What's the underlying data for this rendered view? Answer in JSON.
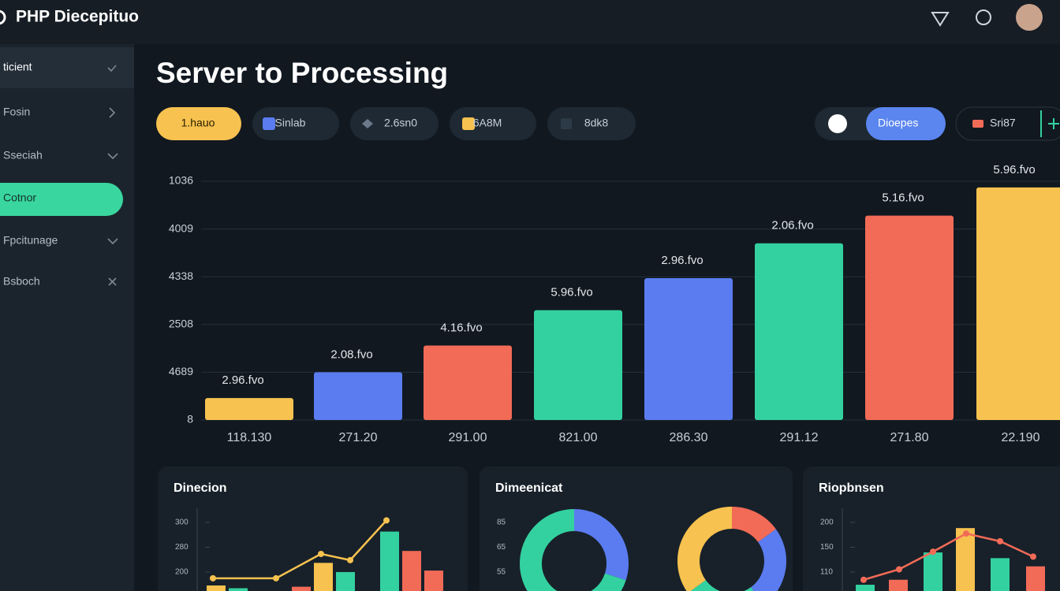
{
  "header": {
    "title": "PHP Diecepituo"
  },
  "sidebar": {
    "items": [
      "ticient",
      "Fosin",
      "Sseciah",
      "Cotnor",
      "Fpcitunage",
      "Bsboch"
    ]
  },
  "page": {
    "title": "Server to Processing"
  },
  "chips": [
    "1.hauo",
    "Sinlab",
    "2.6sn0",
    "6A8M",
    "8dk8"
  ],
  "toggle": {
    "label": "Dioepes"
  },
  "filter": {
    "label": "Sri87"
  },
  "chart_data": {
    "type": "bar",
    "categories": [
      "118.130",
      "271.20",
      "291.00",
      "821.00",
      "286.30",
      "291.12",
      "271.80",
      "22.190"
    ],
    "values": [
      0.46,
      1.0,
      1.56,
      2.3,
      2.97,
      3.7,
      4.28,
      4.87
    ],
    "value_labels": [
      "2.96.fvo",
      "2.08.fvo",
      "4.16.fvo",
      "5.96.fvo",
      "2.96.fvo",
      "2.06.fvo",
      "5.16.fvo",
      "5.96.fvo"
    ],
    "colors": [
      "#f7c24f",
      "#5b7cf0",
      "#f26b57",
      "#34d1a0",
      "#5b7cf0",
      "#34d1a0",
      "#f26b57",
      "#f7c24f"
    ],
    "ylim": [
      0,
      5
    ],
    "yticks": [
      {
        "value": 0,
        "label": "8"
      },
      {
        "value": 1,
        "label": "4689"
      },
      {
        "value": 2,
        "label": "2508"
      },
      {
        "value": 3,
        "label": "4338"
      },
      {
        "value": 4,
        "label": "4009"
      },
      {
        "value": 5,
        "label": "1036"
      }
    ],
    "grid": true
  },
  "panels": [
    {
      "title": "Dinecion",
      "type": "combo",
      "ylim": [
        -1,
        2.6
      ],
      "yticks": [
        {
          "value": 2,
          "label": "300"
        },
        {
          "value": 1,
          "label": "280"
        },
        {
          "value": 0,
          "label": "200"
        }
      ],
      "bars": {
        "values": [
          -0.54,
          -0.65,
          -0.59,
          0.37,
          0,
          1.63,
          0.85,
          0.06
        ],
        "colors": [
          "#f7c24f",
          "#34d1a0",
          "#f26b57",
          "#f7c24f",
          "#34d1a0",
          "#34d1a0",
          "#f26b57",
          "#f26b57"
        ]
      },
      "line": {
        "values": [
          -0.25,
          -0.25,
          0.73,
          0.48,
          2.08
        ],
        "color": "#f7c24f"
      }
    },
    {
      "title": "Dimeenicat",
      "type": "donut",
      "ylim": [
        -1,
        2.6
      ],
      "yticks": [
        {
          "value": 2,
          "label": "85"
        },
        {
          "value": 1,
          "label": "65"
        },
        {
          "value": 0,
          "label": "55"
        }
      ],
      "donuts": [
        {
          "values": [
            30,
            70
          ],
          "colors": [
            "#5b7cf0",
            "#34d1a0"
          ]
        },
        {
          "values": [
            15,
            25,
            25,
            35
          ],
          "colors": [
            "#f26b57",
            "#5b7cf0",
            "#34d1a0",
            "#f7c24f"
          ]
        }
      ]
    },
    {
      "title": "Riopbnsen",
      "type": "combo",
      "ylim": [
        -1,
        2.6
      ],
      "yticks": [
        {
          "value": 2,
          "label": "200"
        },
        {
          "value": 1,
          "label": "150"
        },
        {
          "value": 0,
          "label": "110"
        }
      ],
      "bars": {
        "values": [
          -0.51,
          -0.31,
          0.79,
          1.77,
          0.56,
          0.23
        ],
        "colors": [
          "#34d1a0",
          "#f26b57",
          "#34d1a0",
          "#f7c24f",
          "#34d1a0",
          "#f26b57"
        ]
      },
      "line": {
        "values": [
          -0.31,
          0.11,
          0.82,
          1.55,
          1.24,
          0.62
        ],
        "color": "#f26b57"
      }
    }
  ]
}
